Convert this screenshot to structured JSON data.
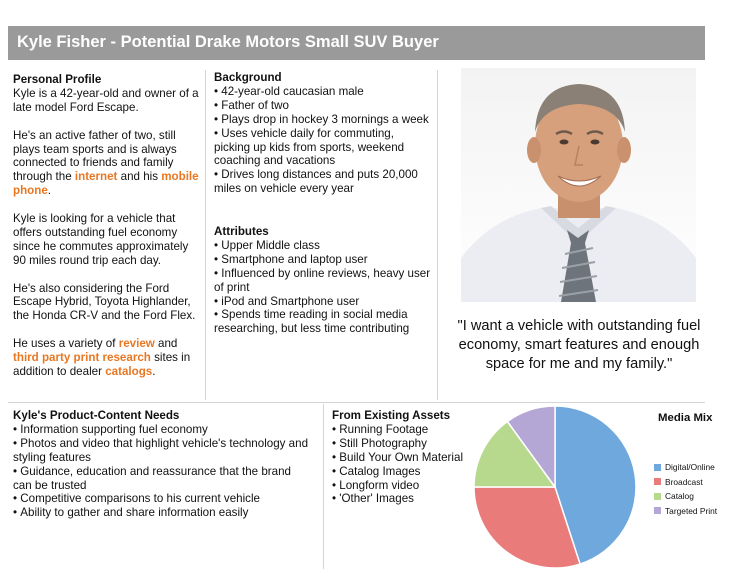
{
  "header": {
    "title": "Kyle Fisher - Potential Drake Motors Small SUV Buyer"
  },
  "profile": {
    "heading": "Personal Profile",
    "p1": "Kyle is a 42-year-old and owner of a late model Ford Escape.",
    "p2_pre": "He's an active father of two, still plays team sports and is always connected to friends and family through the ",
    "p2_link1": "internet",
    "p2_mid": " and his ",
    "p2_link2": "mobile phone",
    "p2_post": ".",
    "p3": "Kyle is looking for a vehicle that offers outstanding fuel economy since he commutes approximately 90 miles round trip each day.",
    "p4": "He's also considering the Ford Escape Hybrid, Toyota Highlander, the Honda CR-V and the Ford Flex.",
    "p5_pre": "He uses a variety of ",
    "p5_link1": "review",
    "p5_mid1": " and ",
    "p5_link2": "third party print research",
    "p5_mid2": " sites in addition to dealer ",
    "p5_link3": "catalogs",
    "p5_post": "."
  },
  "background": {
    "heading": "Background",
    "items": [
      "42-year-old caucasian male",
      "Father of two",
      "Plays drop in hockey 3 mornings a week",
      "Uses vehicle daily for commuting, picking up kids from sports, weekend coaching and vacations",
      "Drives long distances and puts 20,000 miles on vehicle every year"
    ]
  },
  "attributes": {
    "heading": "Attributes",
    "items": [
      "Upper Middle class",
      "Smartphone and laptop user",
      "Influenced by online reviews, heavy user of print",
      "iPod and Smartphone user",
      "Spends time reading in social media researching, but less time contributing"
    ]
  },
  "quote": "\"I want a vehicle with outstanding fuel economy, smart features and enough space for me and my family.\"",
  "needs": {
    "heading": "Kyle's Product-Content Needs",
    "items": [
      "Information supporting fuel economy",
      "Photos and video that highlight vehicle's technology and styling features",
      "Guidance, education and reassurance that the brand can be trusted",
      "Competitive comparisons to his current vehicle",
      "Ability to gather and share information easily"
    ]
  },
  "assets": {
    "heading": "From Existing Assets",
    "items": [
      "Running Footage",
      "Still Photography",
      "Build Your Own Material",
      "Catalog Images",
      "Longform video",
      "'Other' Images"
    ]
  },
  "chart_data": {
    "type": "pie",
    "title": "Media Mix",
    "categories": [
      "Digital/Online",
      "Broadcast",
      "Catalog",
      "Targeted Print"
    ],
    "values": [
      45,
      30,
      15,
      10
    ],
    "colors": [
      "#6fa8dc",
      "#ea7b7b",
      "#b6d98e",
      "#b4a7d6"
    ],
    "legend": "right"
  }
}
